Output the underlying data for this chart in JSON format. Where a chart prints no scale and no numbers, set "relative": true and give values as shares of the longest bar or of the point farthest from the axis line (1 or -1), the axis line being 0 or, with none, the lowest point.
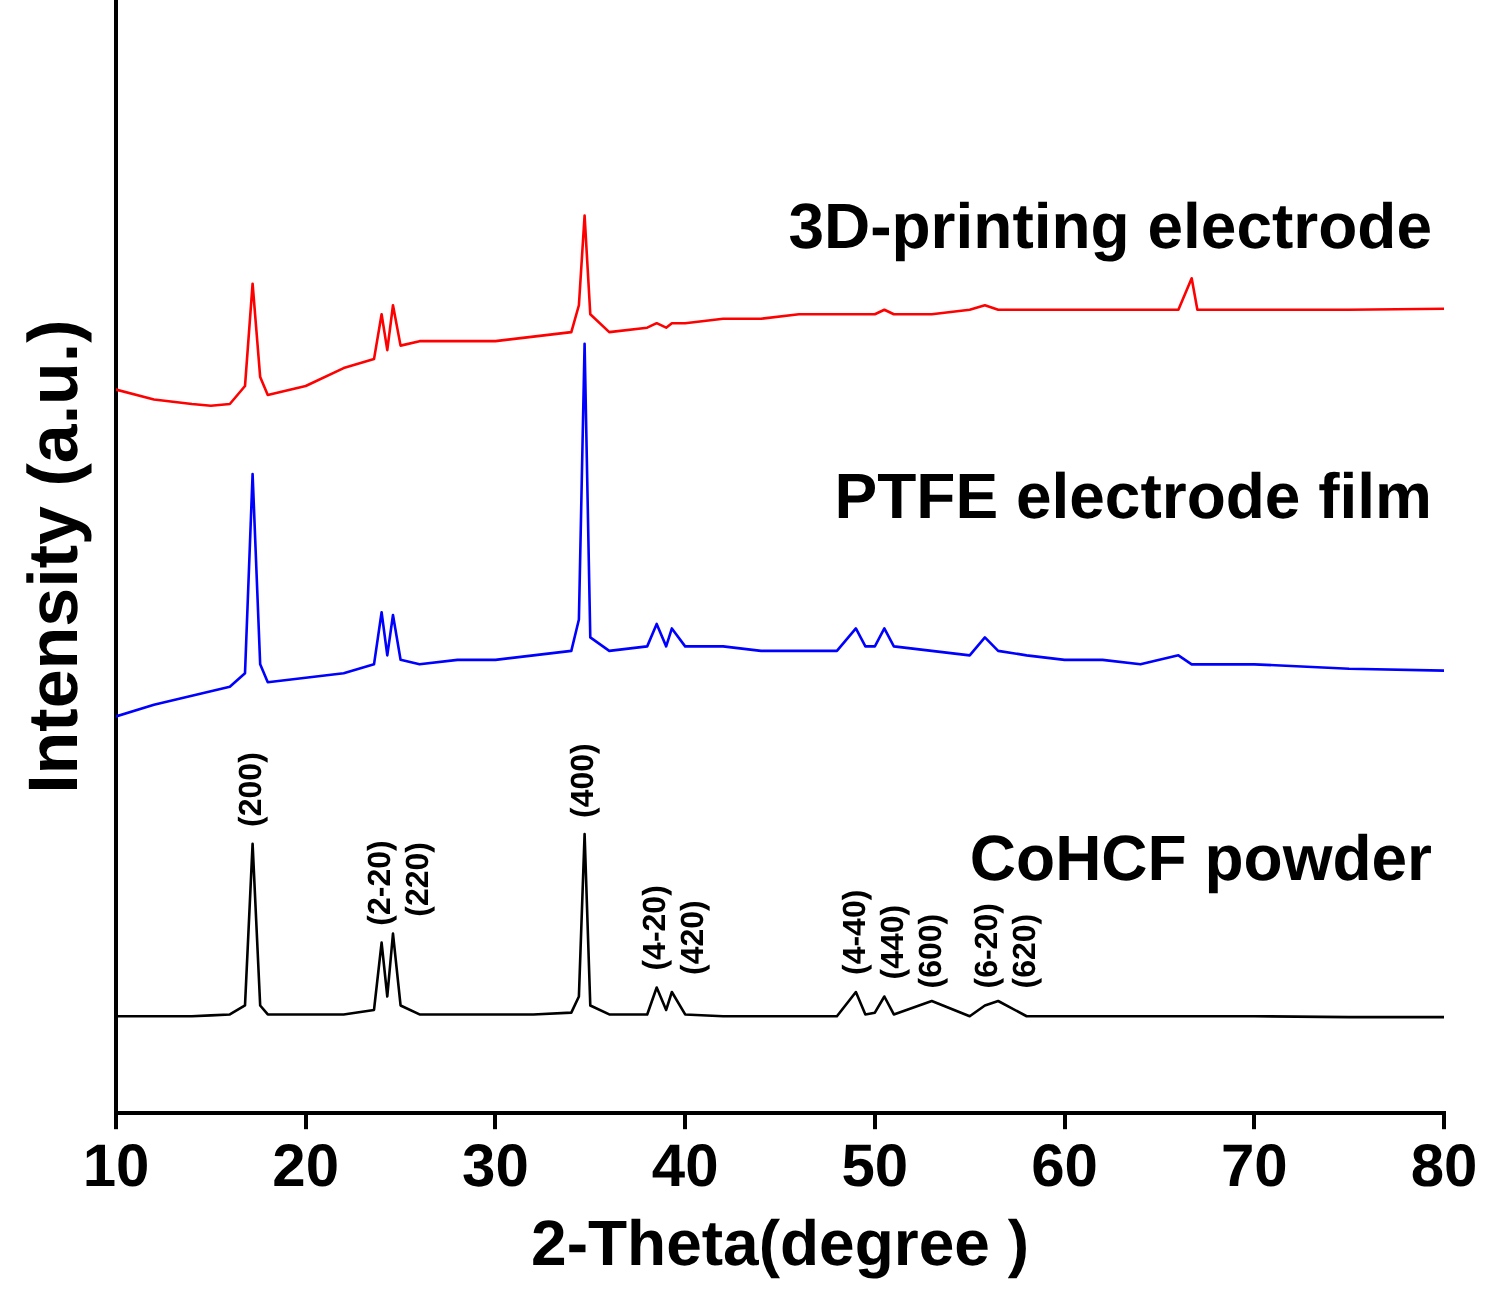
{
  "chart_data": {
    "type": "line",
    "relative": true,
    "xlabel": "2-Theta(degree )",
    "ylabel": "Intensity (a.u.)",
    "xlim": [
      10,
      80
    ],
    "xticks": [
      10,
      20,
      30,
      40,
      50,
      60,
      70,
      80
    ],
    "grid": false,
    "legend": false,
    "marker": "none",
    "line_style": "solid",
    "x": [
      10,
      12,
      14,
      15,
      16,
      16.8,
      17.2,
      17.6,
      18,
      20,
      22,
      23.6,
      24,
      24.3,
      24.6,
      25,
      26,
      28,
      30,
      32,
      34,
      34.4,
      34.7,
      35,
      36,
      38,
      38.5,
      39,
      39.3,
      40,
      42,
      44,
      46,
      48,
      49,
      49.5,
      50,
      50.5,
      51,
      53,
      55,
      55.8,
      56.5,
      58,
      60,
      62,
      64,
      66,
      66.7,
      67,
      70,
      75,
      80
    ],
    "series": [
      {
        "name": "3D-printing electrode",
        "color": "#ff0000",
        "values": [
          0.806,
          0.795,
          0.79,
          0.788,
          0.79,
          0.81,
          0.924,
          0.82,
          0.8,
          0.81,
          0.83,
          0.84,
          0.89,
          0.85,
          0.9,
          0.855,
          0.86,
          0.86,
          0.86,
          0.865,
          0.87,
          0.9,
          1.0,
          0.89,
          0.87,
          0.875,
          0.88,
          0.875,
          0.88,
          0.88,
          0.885,
          0.885,
          0.89,
          0.89,
          0.89,
          0.89,
          0.89,
          0.895,
          0.89,
          0.89,
          0.895,
          0.9,
          0.895,
          0.895,
          0.895,
          0.895,
          0.895,
          0.895,
          0.93,
          0.895,
          0.895,
          0.895,
          0.896
        ]
      },
      {
        "name": "PTFE electrode film",
        "color": "#0000ff",
        "values": [
          0.442,
          0.455,
          0.465,
          0.47,
          0.475,
          0.49,
          0.712,
          0.5,
          0.48,
          0.485,
          0.49,
          0.5,
          0.558,
          0.51,
          0.555,
          0.505,
          0.5,
          0.505,
          0.505,
          0.51,
          0.515,
          0.55,
          0.857,
          0.53,
          0.515,
          0.52,
          0.545,
          0.52,
          0.54,
          0.52,
          0.52,
          0.515,
          0.515,
          0.515,
          0.54,
          0.52,
          0.52,
          0.54,
          0.52,
          0.515,
          0.51,
          0.53,
          0.515,
          0.51,
          0.505,
          0.505,
          0.5,
          0.51,
          0.5,
          0.5,
          0.5,
          0.495,
          0.493
        ]
      },
      {
        "name": "CoHCF powder",
        "color": "#000000",
        "values": [
          0.108,
          0.108,
          0.108,
          0.109,
          0.11,
          0.12,
          0.3,
          0.12,
          0.11,
          0.11,
          0.11,
          0.115,
          0.19,
          0.13,
          0.2,
          0.12,
          0.11,
          0.11,
          0.11,
          0.11,
          0.112,
          0.13,
          0.311,
          0.12,
          0.11,
          0.11,
          0.14,
          0.115,
          0.135,
          0.11,
          0.108,
          0.108,
          0.108,
          0.108,
          0.135,
          0.11,
          0.112,
          0.13,
          0.11,
          0.125,
          0.108,
          0.12,
          0.125,
          0.108,
          0.108,
          0.108,
          0.108,
          0.108,
          0.108,
          0.108,
          0.108,
          0.107,
          0.107
        ]
      }
    ],
    "annotations": [
      {
        "text": "(200)",
        "x": 17.2,
        "y": 0.31
      },
      {
        "text": "(2-20)",
        "x": 24,
        "y": 0.2
      },
      {
        "text": "(220)",
        "x": 24.6,
        "y": 0.21
      },
      {
        "text": "(400)",
        "x": 34.7,
        "y": 0.32
      },
      {
        "text": "(4-20)",
        "x": 38.5,
        "y": 0.15
      },
      {
        "text": "(420)",
        "x": 39.3,
        "y": 0.145
      },
      {
        "text": "(4-40)",
        "x": 49,
        "y": 0.145
      },
      {
        "text": "(440)",
        "x": 50.5,
        "y": 0.14
      },
      {
        "text": "(600)",
        "x": 53,
        "y": 0.13
      },
      {
        "text": "(6-20)",
        "x": 56,
        "y": 0.13
      },
      {
        "text": "(620)",
        "x": 56.8,
        "y": 0.13
      }
    ]
  }
}
